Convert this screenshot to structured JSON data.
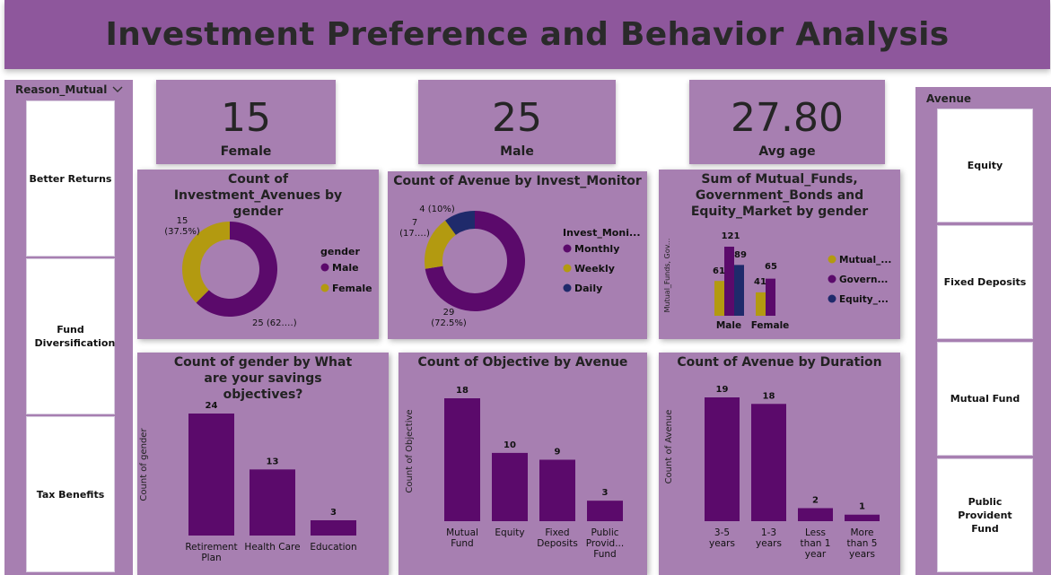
{
  "title": "Investment Preference and Behavior Analysis",
  "left_slicer": {
    "header": "Reason_Mutual",
    "items": [
      "Better Returns",
      "Fund Diversification",
      "Tax Benefits"
    ]
  },
  "right_slicer": {
    "header": "Avenue",
    "items": [
      "Equity",
      "Fixed Deposits",
      "Mutual Fund",
      "Public Provident Fund"
    ]
  },
  "kpis": [
    {
      "value": "15",
      "label": "Female"
    },
    {
      "value": "25",
      "label": "Male"
    },
    {
      "value": "27.80",
      "label": "Avg age"
    }
  ],
  "colors": {
    "purple_dark": "#5b0a6b",
    "gold": "#b39a10",
    "navy": "#1f2a6b",
    "panel": "#a77fb1",
    "header": "#8e579c"
  },
  "chart_data": [
    {
      "type": "pie",
      "donut": true,
      "title": "Count of Investment_Avenues by gender",
      "legend_title": "gender",
      "categories": [
        "Male",
        "Female"
      ],
      "values": [
        25,
        15
      ],
      "data_labels": [
        "25 (62.…)",
        "15\n(37.5%)"
      ],
      "legend_position": "right"
    },
    {
      "type": "pie",
      "donut": true,
      "title": "Count of Avenue by Invest_Monitor",
      "legend_title": "Invest_Moni...",
      "categories": [
        "Monthly",
        "Weekly",
        "Daily"
      ],
      "values": [
        29,
        7,
        4
      ],
      "data_labels": [
        "29\n(72.5%)",
        "7\n(17.…)",
        "4 (10%)"
      ],
      "legend_position": "right"
    },
    {
      "type": "bar",
      "title": "Sum of Mutual_Funds, Government_Bonds and Equity_Market by gender",
      "ylabel": "Mutual_Funds, Gov...",
      "categories": [
        "Male",
        "Female"
      ],
      "series": [
        {
          "name": "Mutual_...",
          "values": [
            61,
            41
          ]
        },
        {
          "name": "Govern...",
          "values": [
            121,
            65
          ]
        },
        {
          "name": "Equity_...",
          "values": [
            89,
            null
          ]
        }
      ],
      "ylim": [
        0,
        121
      ],
      "legend_position": "right"
    },
    {
      "type": "bar",
      "title": "Count of gender by What are your savings objectives?",
      "ylabel": "Count of gender",
      "categories": [
        "Retirement Plan",
        "Health Care",
        "Education"
      ],
      "values": [
        24,
        13,
        3
      ],
      "ylim": [
        0,
        24
      ]
    },
    {
      "type": "bar",
      "title": "Count of Objective by Avenue",
      "ylabel": "Count of Objective",
      "categories": [
        "Mutual Fund",
        "Equity",
        "Fixed Deposits",
        "Public Provid... Fund"
      ],
      "values": [
        18,
        10,
        9,
        3
      ],
      "ylim": [
        0,
        18
      ]
    },
    {
      "type": "bar",
      "title": "Count of Avenue by Duration",
      "ylabel": "Count of Avenue",
      "categories": [
        "3-5 years",
        "1-3 years",
        "Less than 1 year",
        "More than 5 years"
      ],
      "values": [
        19,
        18,
        2,
        1
      ],
      "ylim": [
        0,
        19
      ]
    }
  ]
}
